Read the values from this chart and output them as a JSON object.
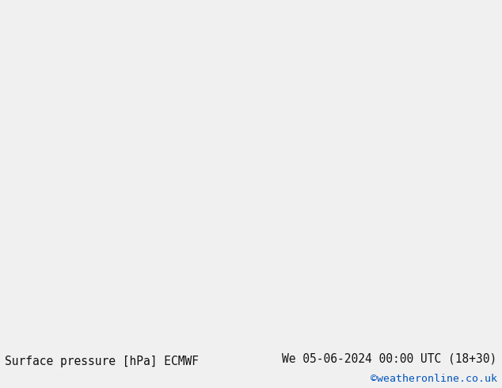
{
  "title_left": "Surface pressure [hPa] ECMWF",
  "title_right": "We 05-06-2024 00:00 UTC (18+30)",
  "copyright": "©weatheronline.co.uk",
  "bg_ocean": "#d8d8d8",
  "bg_land": "#c8e0a0",
  "coast_color": "#808080",
  "black": "#000000",
  "blue": "#0000cc",
  "red": "#cc2222",
  "cyan_blue": "#0055cc",
  "footer_bg": "#f0f0f0",
  "footer_text": "#111111",
  "copyright_color": "#0055bb",
  "footer_fontsize": 10.5,
  "figw": 6.34,
  "figh": 4.9,
  "dpi": 100
}
